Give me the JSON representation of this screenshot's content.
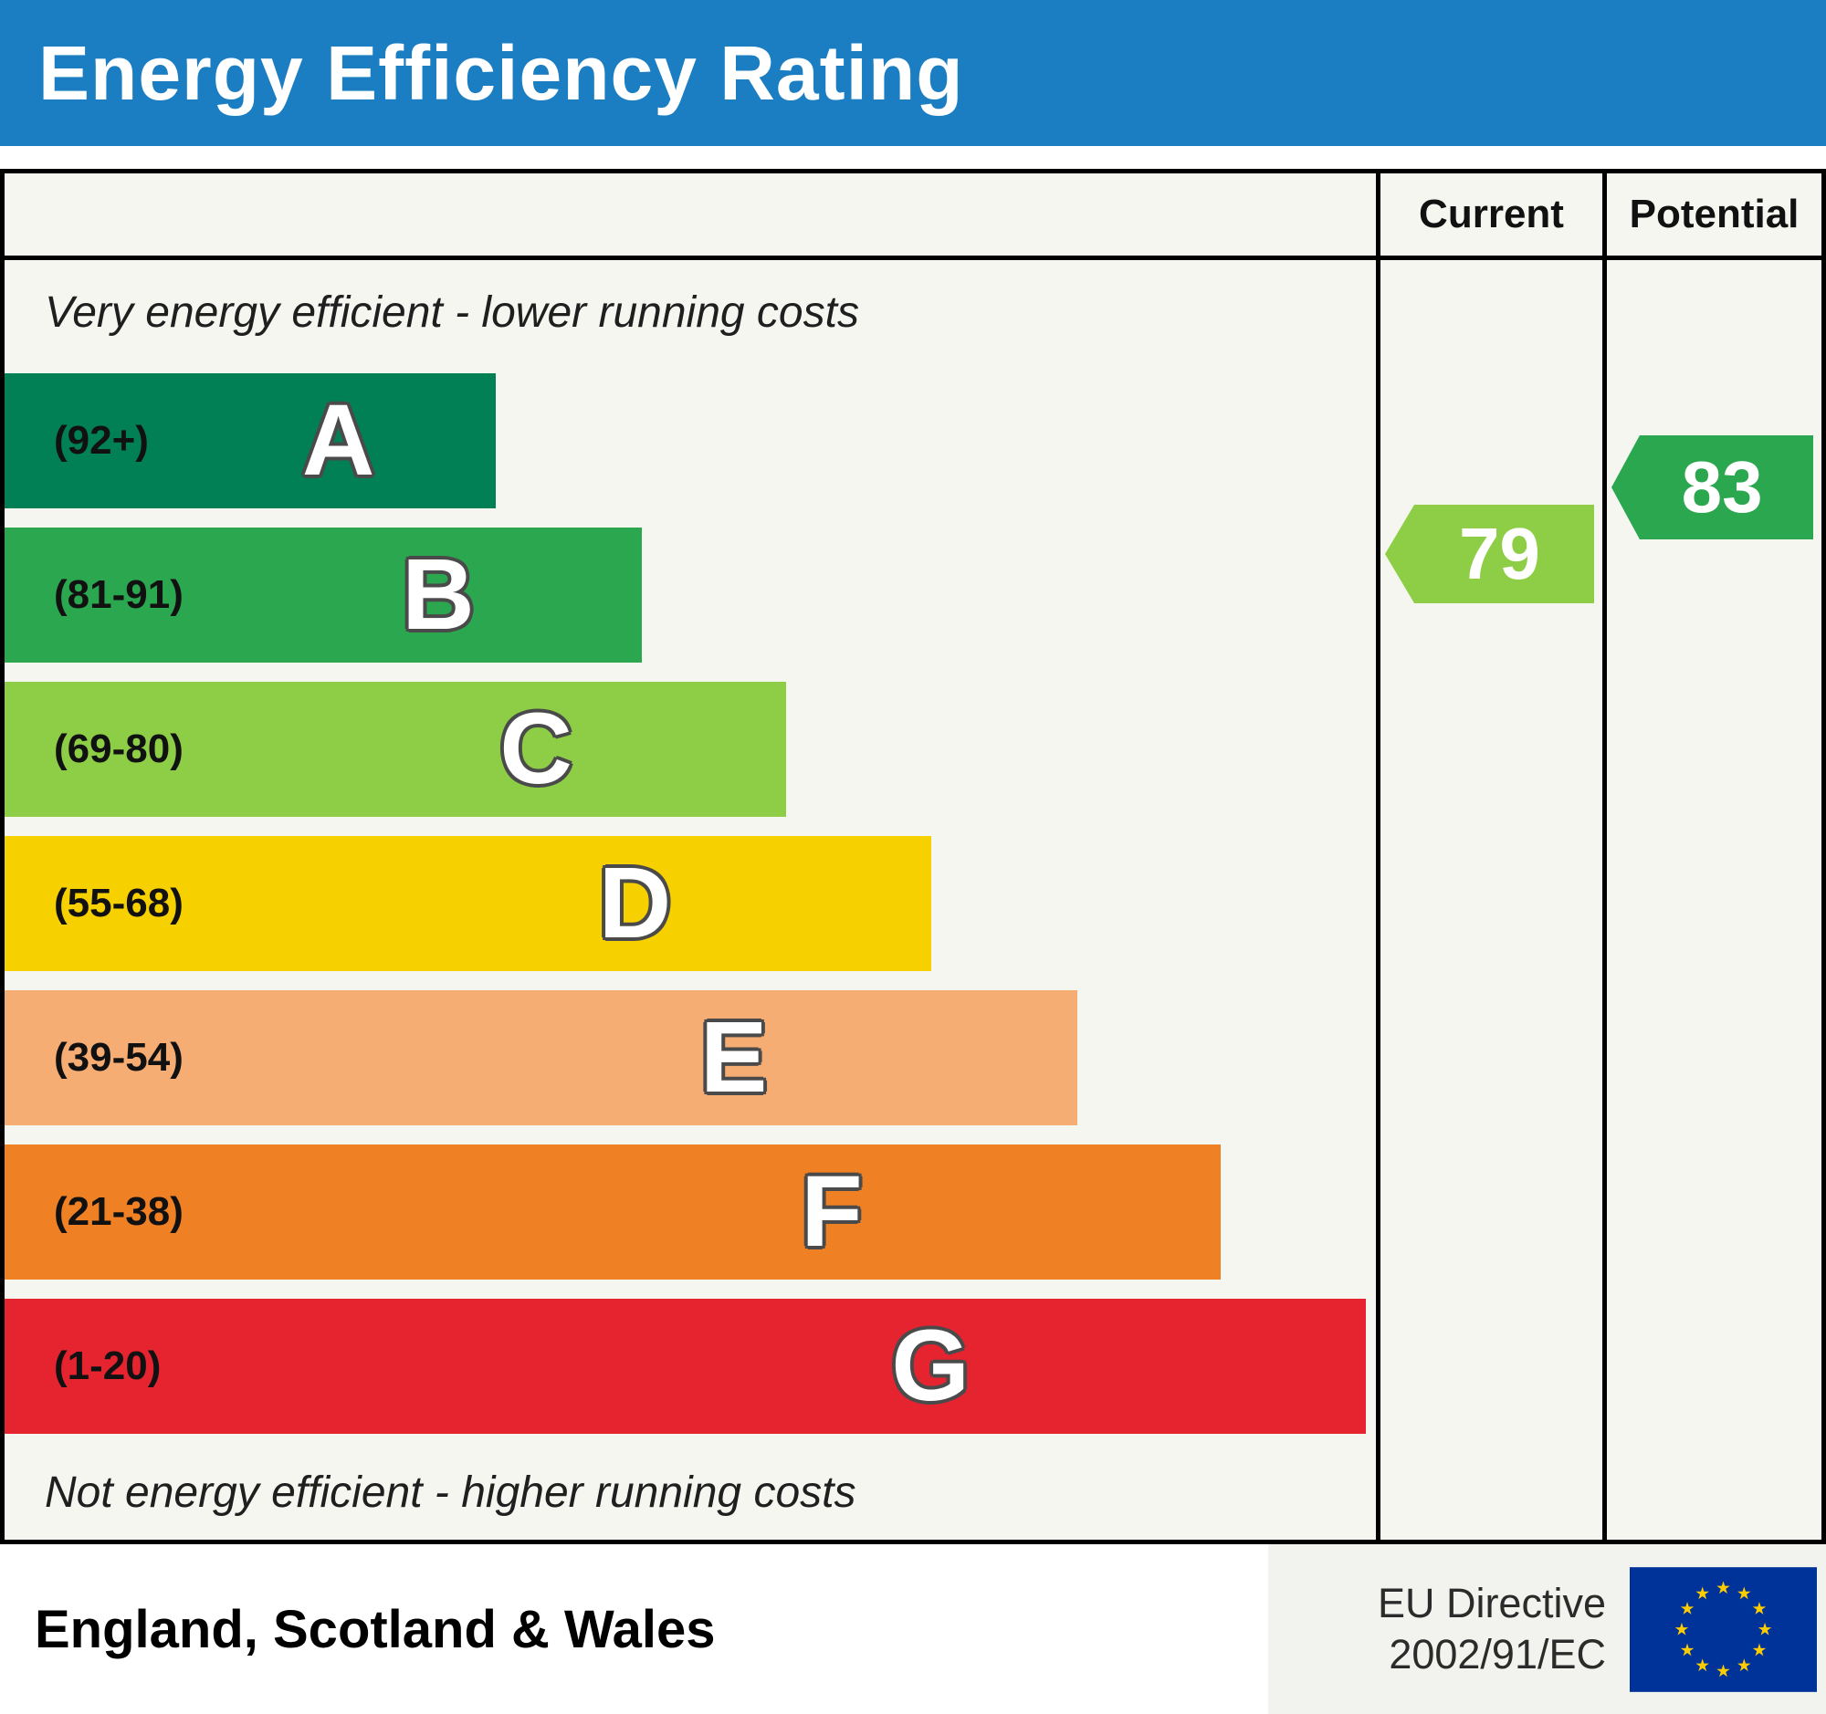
{
  "title": "Energy Efficiency Rating",
  "colors": {
    "header_bg": "#1b7ec3",
    "chart_bg": "#f6f6f1"
  },
  "columns": {
    "current": "Current",
    "potential": "Potential"
  },
  "chart_data": {
    "type": "epc-energy-rating-bar",
    "top_note": "Very energy efficient - lower running costs",
    "bottom_note": "Not energy efficient - higher running costs",
    "bands": [
      {
        "letter": "A",
        "range": "(92+)",
        "min": 92,
        "max": 100,
        "color": "#008054",
        "width_pct": 35.8
      },
      {
        "letter": "B",
        "range": "(81-91)",
        "min": 81,
        "max": 91,
        "color": "#2ba750",
        "width_pct": 46.5
      },
      {
        "letter": "C",
        "range": "(69-80)",
        "min": 69,
        "max": 80,
        "color": "#8dce46",
        "width_pct": 57.0
      },
      {
        "letter": "D",
        "range": "(55-68)",
        "min": 55,
        "max": 68,
        "color": "#f7d000",
        "width_pct": 67.6
      },
      {
        "letter": "E",
        "range": "(39-54)",
        "min": 39,
        "max": 54,
        "color": "#f5ad74",
        "width_pct": 78.2
      },
      {
        "letter": "F",
        "range": "(21-38)",
        "min": 21,
        "max": 38,
        "color": "#ef8023",
        "width_pct": 88.7
      },
      {
        "letter": "G",
        "range": "(1-20)",
        "min": 1,
        "max": 20,
        "color": "#e52430",
        "width_pct": 99.3
      }
    ],
    "current": {
      "value": 79,
      "band": "C",
      "color": "#8dce46"
    },
    "potential": {
      "value": 83,
      "band": "B",
      "color": "#2ba750"
    }
  },
  "footer": {
    "region": "England, Scotland & Wales",
    "directive_line1": "EU Directive",
    "directive_line2": "2002/91/EC",
    "eu_flag": {
      "field_color": "#003399",
      "star_color": "#ffcc00"
    }
  }
}
